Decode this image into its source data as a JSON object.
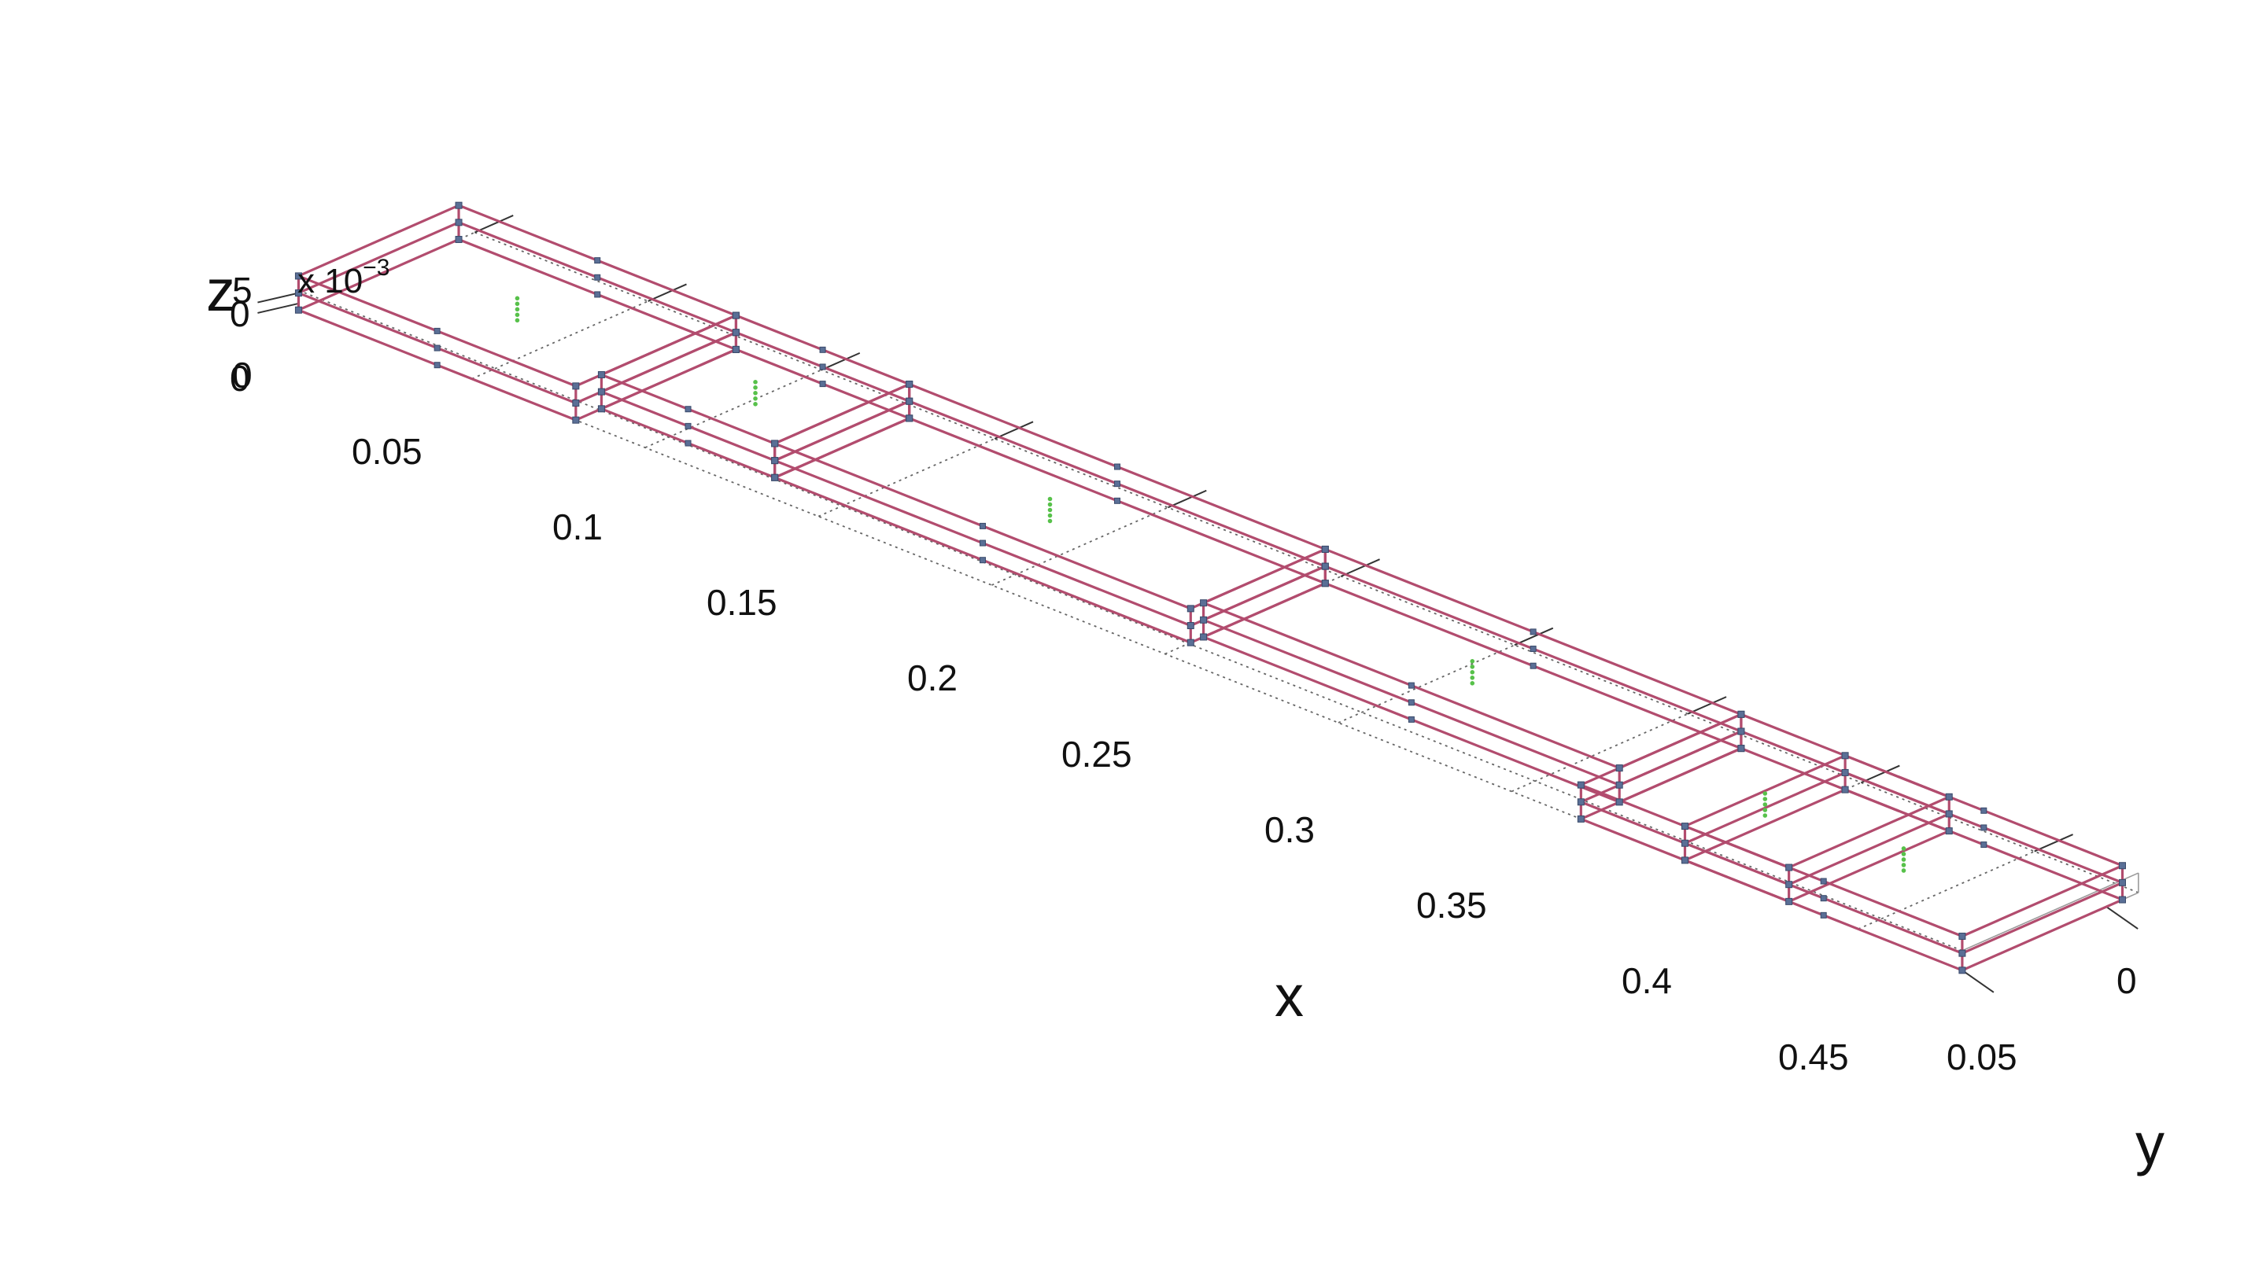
{
  "figure": {
    "x_label": "x",
    "y_label": "y",
    "z_label": "z",
    "z_exponent_prefix": "x 10",
    "z_exponent_power": "−3"
  },
  "x_ticks": [
    "0",
    "0.05",
    "0.1",
    "0.15",
    "0.2",
    "0.25",
    "0.3",
    "0.35",
    "0.4",
    "0.45"
  ],
  "y_ticks": [
    "0",
    "0.05"
  ],
  "z_ticks": [
    "0",
    "5"
  ],
  "structure": {
    "wire_color": "#b24c6e",
    "node_color": "#5a6f96",
    "marker_color": "#57c14a"
  }
}
